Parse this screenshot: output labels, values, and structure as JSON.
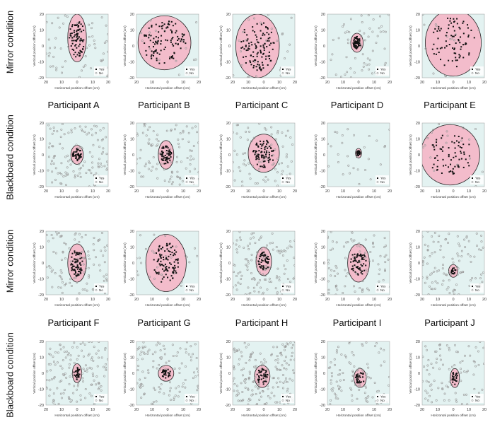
{
  "figure": {
    "row_labels": [
      "Mirror condition",
      "Blackboard condition",
      "Mirror condition",
      "Blackboard condition"
    ],
    "participant_labels": [
      "Participant A",
      "Participant B",
      "Participant C",
      "Participant D",
      "Participant E",
      "Participant F",
      "Participant G",
      "Participant H",
      "Participant I",
      "Participant J"
    ],
    "colors": {
      "plot_bg": "#e3f2f1",
      "region_fill": "#f3bccb",
      "region_stroke": "#222222",
      "yes_marker": "#111111",
      "no_marker": "#9a9a9a"
    }
  },
  "chart_data": [
    {
      "type": "scatter",
      "participant": "Participant A",
      "condition": "Mirror condition",
      "xlabel": "Horizontal position offset (cm)",
      "ylabel": "Vertical position offset (cm)",
      "xlim": [
        -20,
        20
      ],
      "ylim": [
        -20,
        20
      ],
      "xticks": [
        -20,
        -10,
        0,
        10,
        20
      ],
      "yticks": [
        -20,
        -10,
        0,
        10,
        20
      ],
      "legend": [
        "Yes",
        "No"
      ],
      "legend_position": "bottom-right",
      "region": {
        "cx": 0,
        "cy": 5,
        "rx": 6,
        "ry": 15
      },
      "yes_count": 80,
      "yes_spread": [
        5,
        12
      ],
      "no_count": 60
    },
    {
      "type": "scatter",
      "participant": "Participant B",
      "condition": "Mirror condition",
      "xlabel": "Horizontal position offset (cm)",
      "ylabel": "Vertical position offset (cm)",
      "xlim": [
        -20,
        20
      ],
      "ylim": [
        -20,
        20
      ],
      "xticks": [
        -20,
        -10,
        0,
        10,
        20
      ],
      "yticks": [
        -20,
        -10,
        0,
        10,
        20
      ],
      "legend": [
        "Yes",
        "No"
      ],
      "legend_position": "bottom-right",
      "region": {
        "cx": -2,
        "cy": 2,
        "rx": 17,
        "ry": 17
      },
      "yes_count": 110,
      "yes_spread": [
        14,
        14
      ],
      "no_count": 20
    },
    {
      "type": "scatter",
      "participant": "Participant C",
      "condition": "Mirror condition",
      "xlabel": "Horizontal position offset (cm)",
      "ylabel": "Vertical position offset (cm)",
      "xlim": [
        -20,
        20
      ],
      "ylim": [
        -20,
        20
      ],
      "xticks": [
        -20,
        -10,
        0,
        10,
        20
      ],
      "yticks": [
        -20,
        -10,
        0,
        10,
        20
      ],
      "legend": [
        "Yes",
        "No"
      ],
      "legend_position": "bottom-right",
      "region": {
        "cx": -4,
        "cy": 0,
        "rx": 14,
        "ry": 20
      },
      "yes_count": 110,
      "yes_spread": [
        11,
        16
      ],
      "no_count": 30
    },
    {
      "type": "scatter",
      "participant": "Participant D",
      "condition": "Mirror condition",
      "xlabel": "Horizontal position offset (cm)",
      "ylabel": "Vertical position offset (cm)",
      "xlim": [
        -20,
        20
      ],
      "ylim": [
        -20,
        20
      ],
      "xticks": [
        -20,
        -10,
        0,
        10,
        20
      ],
      "yticks": [
        -20,
        -10,
        0,
        10,
        20
      ],
      "legend": [
        "Yes",
        "No"
      ],
      "legend_position": "bottom-right",
      "region": {
        "cx": -1,
        "cy": 2,
        "rx": 4,
        "ry": 6
      },
      "yes_count": 60,
      "yes_spread": [
        2.5,
        4
      ],
      "no_count": 60
    },
    {
      "type": "scatter",
      "participant": "Participant E",
      "condition": "Mirror condition",
      "xlabel": "Horizontal position offset (cm)",
      "ylabel": "Vertical position offset (cm)",
      "xlim": [
        -20,
        20
      ],
      "ylim": [
        -20,
        20
      ],
      "xticks": [
        -20,
        -10,
        0,
        10,
        20
      ],
      "yticks": [
        -20,
        -10,
        0,
        10,
        20
      ],
      "legend": [
        "Yes",
        "No"
      ],
      "legend_position": "bottom-right",
      "region": {
        "cx": 0,
        "cy": 2,
        "rx": 18,
        "ry": 21
      },
      "yes_count": 80,
      "yes_spread": [
        14,
        16
      ],
      "no_count": 15
    },
    {
      "type": "scatter",
      "participant": "Participant A",
      "condition": "Blackboard condition",
      "xlabel": "Horizontal position offset (cm)",
      "ylabel": "Vertical position offset (cm)",
      "xlim": [
        -20,
        20
      ],
      "ylim": [
        -20,
        20
      ],
      "xticks": [
        -20,
        -10,
        0,
        10,
        20
      ],
      "yticks": [
        -20,
        -10,
        0,
        10,
        20
      ],
      "legend": [
        "Yes",
        "No"
      ],
      "legend_position": "bottom-right",
      "region": {
        "cx": 0,
        "cy": 0,
        "rx": 4,
        "ry": 6
      },
      "yes_count": 45,
      "yes_spread": [
        3,
        4
      ],
      "no_count": 120
    },
    {
      "type": "scatter",
      "participant": "Participant B",
      "condition": "Blackboard condition",
      "xlabel": "Horizontal position offset (cm)",
      "ylabel": "Vertical position offset (cm)",
      "xlim": [
        -20,
        20
      ],
      "ylim": [
        -20,
        20
      ],
      "xticks": [
        -20,
        -10,
        0,
        10,
        20
      ],
      "yticks": [
        -20,
        -10,
        0,
        10,
        20
      ],
      "legend": [
        "Yes",
        "No"
      ],
      "legend_position": "bottom-right",
      "region": {
        "cx": -1,
        "cy": 0,
        "rx": 5,
        "ry": 9
      },
      "yes_count": 60,
      "yes_spread": [
        3.5,
        6
      ],
      "no_count": 100
    },
    {
      "type": "scatter",
      "participant": "Participant C",
      "condition": "Blackboard condition",
      "xlabel": "Horizontal position offset (cm)",
      "ylabel": "Vertical position offset (cm)",
      "xlim": [
        -20,
        20
      ],
      "ylim": [
        -20,
        20
      ],
      "xticks": [
        -20,
        -10,
        0,
        10,
        20
      ],
      "yticks": [
        -20,
        -10,
        0,
        10,
        20
      ],
      "legend": [
        "Yes",
        "No"
      ],
      "legend_position": "bottom-right",
      "region": {
        "cx": 0,
        "cy": 1,
        "rx": 10,
        "ry": 12
      },
      "yes_count": 80,
      "yes_spread": [
        7,
        9
      ],
      "no_count": 80
    },
    {
      "type": "scatter",
      "participant": "Participant D",
      "condition": "Blackboard condition",
      "xlabel": "Horizontal position offset (cm)",
      "ylabel": "Vertical position offset (cm)",
      "xlim": [
        -20,
        20
      ],
      "ylim": [
        -20,
        20
      ],
      "xticks": [
        -20,
        -10,
        0,
        10,
        20
      ],
      "yticks": [
        -20,
        -10,
        0,
        10,
        20
      ],
      "legend": [
        "Yes",
        "No"
      ],
      "legend_position": "bottom-right",
      "region": {
        "cx": 0,
        "cy": 1,
        "rx": 2,
        "ry": 3
      },
      "yes_count": 25,
      "yes_spread": [
        1.2,
        1.8
      ],
      "no_count": 30
    },
    {
      "type": "scatter",
      "participant": "Participant E",
      "condition": "Blackboard condition",
      "xlabel": "Horizontal position offset (cm)",
      "ylabel": "Vertical position offset (cm)",
      "xlim": [
        -20,
        20
      ],
      "ylim": [
        -20,
        20
      ],
      "xticks": [
        -20,
        -10,
        0,
        10,
        20
      ],
      "yticks": [
        -20,
        -10,
        0,
        10,
        20
      ],
      "legend": [
        "Yes",
        "No"
      ],
      "legend_position": "bottom-right",
      "region": {
        "cx": -2,
        "cy": 0,
        "rx": 19,
        "ry": 19
      },
      "yes_count": 70,
      "yes_spread": [
        14,
        14
      ],
      "no_count": 20
    },
    {
      "type": "scatter",
      "participant": "Participant F",
      "condition": "Mirror condition",
      "xlabel": "Horizontal position offset (cm)",
      "ylabel": "Vertical position offset (cm)",
      "xlim": [
        -20,
        20
      ],
      "ylim": [
        -20,
        20
      ],
      "xticks": [
        -20,
        -10,
        0,
        10,
        20
      ],
      "yticks": [
        -20,
        -10,
        0,
        10,
        20
      ],
      "legend": [
        "Yes",
        "No"
      ],
      "legend_position": "bottom-right",
      "region": {
        "cx": 0,
        "cy": 0,
        "rx": 6,
        "ry": 12
      },
      "yes_count": 70,
      "yes_spread": [
        4,
        9
      ],
      "no_count": 100
    },
    {
      "type": "scatter",
      "participant": "Participant G",
      "condition": "Mirror condition",
      "xlabel": "Horizontal position offset (cm)",
      "ylabel": "Vertical position offset (cm)",
      "xlim": [
        -20,
        20
      ],
      "ylim": [
        -20,
        20
      ],
      "xticks": [
        -20,
        -10,
        0,
        10,
        20
      ],
      "yticks": [
        -20,
        -10,
        0,
        10,
        20
      ],
      "legend": [
        "Yes",
        "No"
      ],
      "legend_position": "bottom-right",
      "region": {
        "cx": -1,
        "cy": 0,
        "rx": 13,
        "ry": 18
      },
      "yes_count": 100,
      "yes_spread": [
        8,
        13
      ],
      "no_count": 30
    },
    {
      "type": "scatter",
      "participant": "Participant H",
      "condition": "Mirror condition",
      "xlabel": "Horizontal position offset (cm)",
      "ylabel": "Vertical position offset (cm)",
      "xlim": [
        -20,
        20
      ],
      "ylim": [
        -20,
        20
      ],
      "xticks": [
        -20,
        -10,
        0,
        10,
        20
      ],
      "yticks": [
        -20,
        -10,
        0,
        10,
        20
      ],
      "legend": [
        "Yes",
        "No"
      ],
      "legend_position": "bottom-right",
      "region": {
        "cx": 0,
        "cy": 1,
        "rx": 5,
        "ry": 9
      },
      "yes_count": 50,
      "yes_spread": [
        3.5,
        6
      ],
      "no_count": 130
    },
    {
      "type": "scatter",
      "participant": "Participant I",
      "condition": "Mirror condition",
      "xlabel": "Horizontal position offset (cm)",
      "ylabel": "Vertical position offset (cm)",
      "xlim": [
        -20,
        20
      ],
      "ylim": [
        -20,
        20
      ],
      "xticks": [
        -20,
        -10,
        0,
        10,
        20
      ],
      "yticks": [
        -20,
        -10,
        0,
        10,
        20
      ],
      "legend": [
        "Yes",
        "No"
      ],
      "legend_position": "bottom-right",
      "region": {
        "cx": 0,
        "cy": 0,
        "rx": 7,
        "ry": 12
      },
      "yes_count": 60,
      "yes_spread": [
        5,
        8
      ],
      "no_count": 90
    },
    {
      "type": "scatter",
      "participant": "Participant J",
      "condition": "Mirror condition",
      "xlabel": "Horizontal position offset (cm)",
      "ylabel": "Vertical position offset (cm)",
      "xlim": [
        -20,
        20
      ],
      "ylim": [
        -20,
        20
      ],
      "xticks": [
        -20,
        -10,
        0,
        10,
        20
      ],
      "yticks": [
        -20,
        -10,
        0,
        10,
        20
      ],
      "legend": [
        "Yes",
        "No"
      ],
      "legend_position": "bottom-right",
      "region": {
        "cx": 0,
        "cy": -5,
        "rx": 3,
        "ry": 4
      },
      "yes_count": 20,
      "yes_spread": [
        1.6,
        2
      ],
      "no_count": 110
    },
    {
      "type": "scatter",
      "participant": "Participant F",
      "condition": "Blackboard condition",
      "xlabel": "Horizontal position offset (cm)",
      "ylabel": "Vertical position offset (cm)",
      "xlim": [
        -20,
        20
      ],
      "ylim": [
        -20,
        20
      ],
      "xticks": [
        -20,
        -10,
        0,
        10,
        20
      ],
      "yticks": [
        -20,
        -10,
        0,
        10,
        20
      ],
      "legend": [
        "Yes",
        "No"
      ],
      "legend_position": "bottom-right",
      "region": {
        "cx": 0,
        "cy": 0,
        "rx": 3,
        "ry": 6
      },
      "yes_count": 30,
      "yes_spread": [
        2,
        4
      ],
      "no_count": 140
    },
    {
      "type": "scatter",
      "participant": "Participant G",
      "condition": "Blackboard condition",
      "xlabel": "Horizontal position offset (cm)",
      "ylabel": "Vertical position offset (cm)",
      "xlim": [
        -20,
        20
      ],
      "ylim": [
        -20,
        20
      ],
      "xticks": [
        -20,
        -10,
        0,
        10,
        20
      ],
      "yticks": [
        -20,
        -10,
        0,
        10,
        20
      ],
      "legend": [
        "Yes",
        "No"
      ],
      "legend_position": "bottom-right",
      "region": {
        "cx": -1,
        "cy": 0,
        "rx": 5,
        "ry": 5
      },
      "yes_count": 30,
      "yes_spread": [
        3,
        3
      ],
      "no_count": 120
    },
    {
      "type": "scatter",
      "participant": "Participant H",
      "condition": "Blackboard condition",
      "xlabel": "Horizontal position offset (cm)",
      "ylabel": "Vertical position offset (cm)",
      "xlim": [
        -20,
        20
      ],
      "ylim": [
        -20,
        20
      ],
      "xticks": [
        -20,
        -10,
        0,
        10,
        20
      ],
      "yticks": [
        -20,
        -10,
        0,
        10,
        20
      ],
      "legend": [
        "Yes",
        "No"
      ],
      "legend_position": "bottom-right",
      "region": {
        "cx": -1,
        "cy": -2,
        "rx": 5,
        "ry": 7
      },
      "yes_count": 40,
      "yes_spread": [
        3.5,
        5
      ],
      "no_count": 170
    },
    {
      "type": "scatter",
      "participant": "Participant I",
      "condition": "Blackboard condition",
      "xlabel": "Horizontal position offset (cm)",
      "ylabel": "Vertical position offset (cm)",
      "xlim": [
        -20,
        20
      ],
      "ylim": [
        -20,
        20
      ],
      "xticks": [
        -20,
        -10,
        0,
        10,
        20
      ],
      "yticks": [
        -20,
        -10,
        0,
        10,
        20
      ],
      "legend": [
        "Yes",
        "No"
      ],
      "legend_position": "bottom-right",
      "region": {
        "cx": 1,
        "cy": -3,
        "rx": 4,
        "ry": 6
      },
      "yes_count": 30,
      "yes_spread": [
        3,
        4
      ],
      "no_count": 100
    },
    {
      "type": "scatter",
      "participant": "Participant J",
      "condition": "Blackboard condition",
      "xlabel": "Horizontal position offset (cm)",
      "ylabel": "Vertical position offset (cm)",
      "xlim": [
        -20,
        20
      ],
      "ylim": [
        -20,
        20
      ],
      "xticks": [
        -20,
        -10,
        0,
        10,
        20
      ],
      "yticks": [
        -20,
        -10,
        0,
        10,
        20
      ],
      "legend": [
        "Yes",
        "No"
      ],
      "legend_position": "bottom-right",
      "region": {
        "cx": 1,
        "cy": -3,
        "rx": 3,
        "ry": 6
      },
      "yes_count": 25,
      "yes_spread": [
        2,
        4
      ],
      "no_count": 90
    }
  ]
}
